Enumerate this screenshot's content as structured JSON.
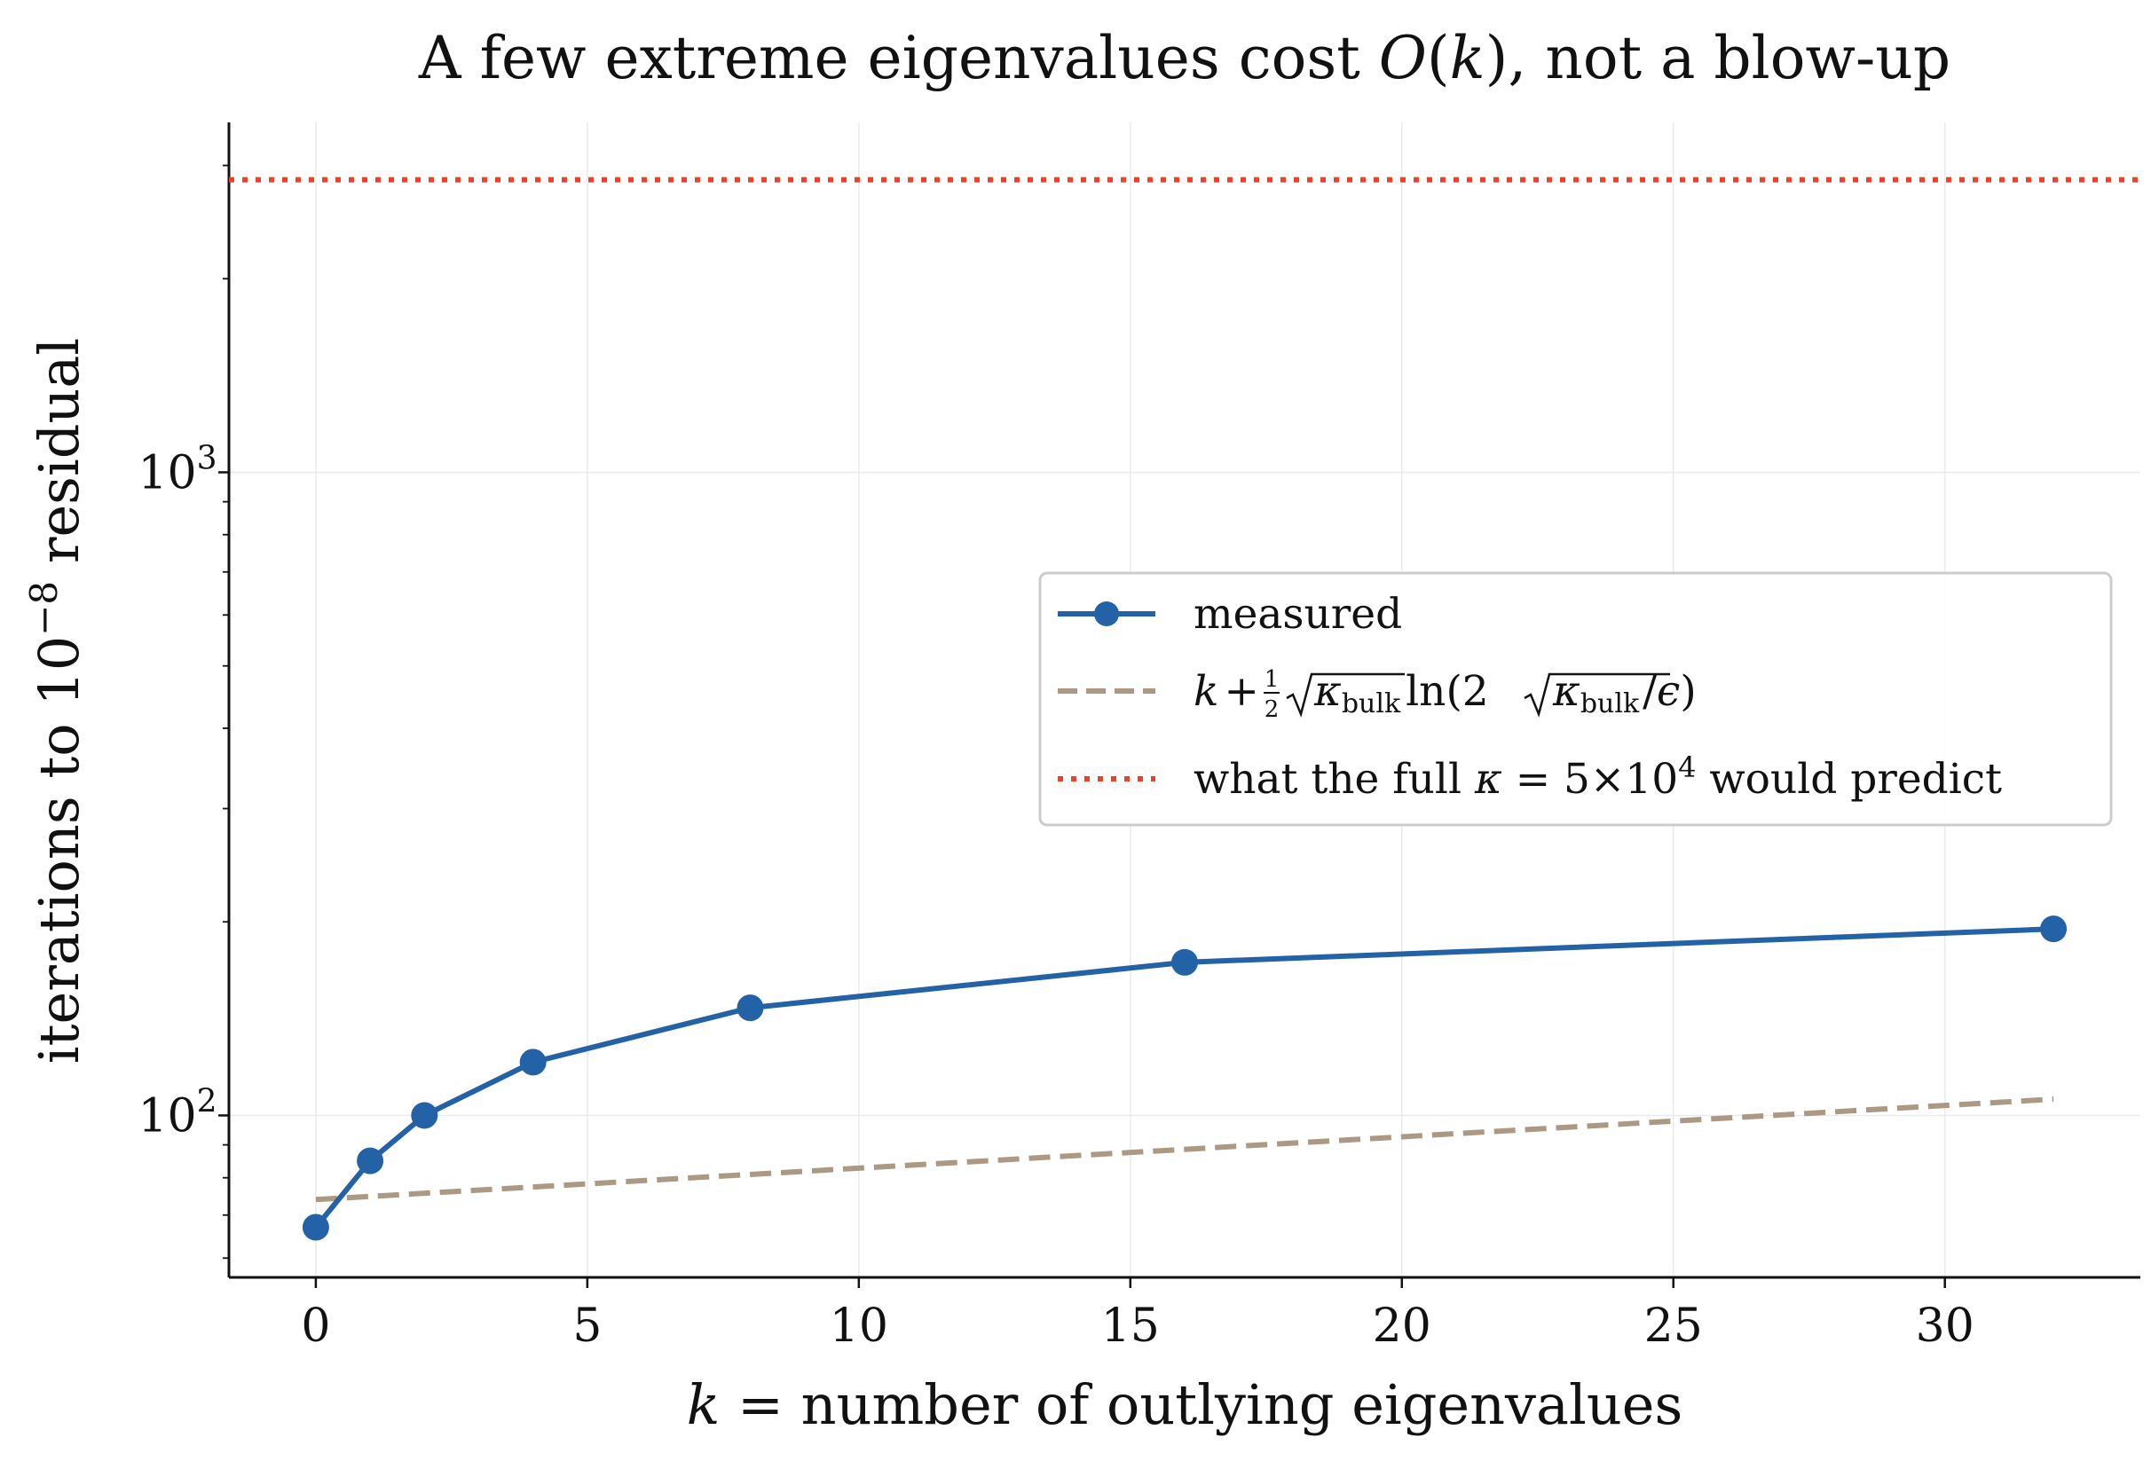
{
  "chart_data": {
    "type": "line",
    "title": {
      "before": "A few extreme eigenvalues cost ",
      "math_O": "O",
      "math_open": "(",
      "math_k": "k",
      "math_close": ")",
      "after": ", not a blow-up"
    },
    "xlabel": {
      "var": "k",
      "rest": " = number of outlying eigenvalues"
    },
    "ylabel": {
      "before": "iterations to 10",
      "exponent": "−8",
      "after": " residual"
    },
    "x_ticks": [
      0,
      5,
      10,
      15,
      20,
      25,
      30
    ],
    "x_tick_labels": [
      "0",
      "5",
      "10",
      "15",
      "20",
      "25",
      "30"
    ],
    "y_ticks": [
      {
        "value": 100,
        "base": "10",
        "exp": "2"
      },
      {
        "value": 1000,
        "base": "10",
        "exp": "3"
      }
    ],
    "xlim": [
      -1.6,
      33.6
    ],
    "ylim": [
      56,
      3500
    ],
    "y_scale": "log",
    "grid": true,
    "legend_position": "center-right",
    "series": [
      {
        "name": "measured",
        "style": "solid-with-markers",
        "color": "#2462a7",
        "x": [
          0,
          1,
          2,
          4,
          8,
          16,
          32
        ],
        "y": [
          67,
          85,
          100,
          121,
          147,
          173,
          195
        ]
      },
      {
        "name": "k + ½√κbulk ln(2√κbulk/ε)",
        "legend_math": {
          "k": "k",
          "plus": "+",
          "frac_num": "1",
          "frac_den": "2",
          "kappa": "κ",
          "sub": "bulk",
          "ln": "ln",
          "open": "(",
          "two": "2",
          "slash": "/",
          "eps": "ϵ",
          "close": ")"
        },
        "style": "dashed",
        "color": "#ab9983",
        "x": [
          0,
          32
        ],
        "y": [
          74,
          106
        ]
      },
      {
        "name": "what the full κ = 5×10⁴ would predict",
        "legend_parts": {
          "before": "what the full ",
          "kappa": "κ",
          "equals": " = 5×10",
          "exp": "4",
          "after": " would predict"
        },
        "style": "dotted-horizontal",
        "color": "#e8442c",
        "y": 2850
      }
    ]
  }
}
